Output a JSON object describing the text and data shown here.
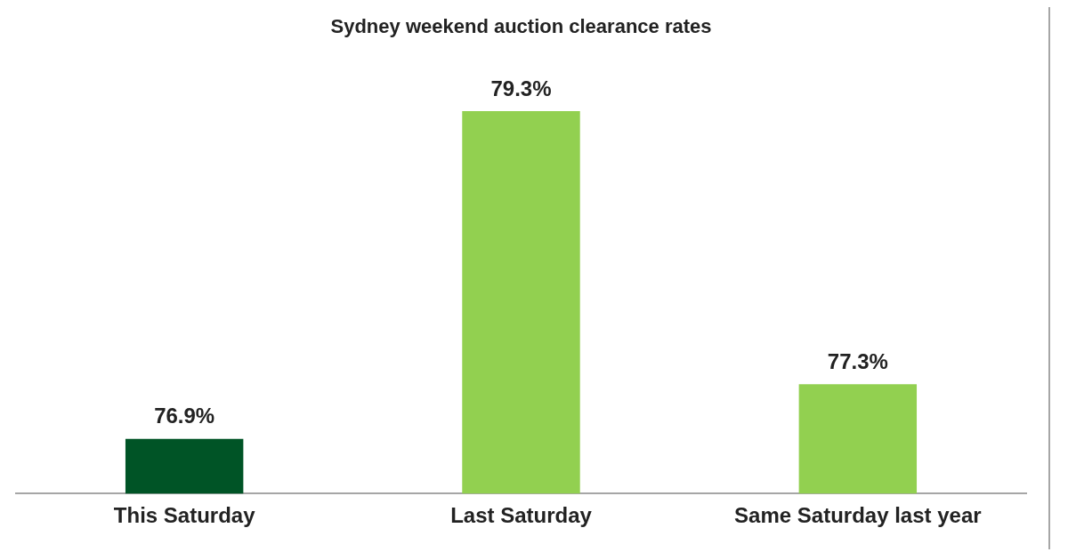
{
  "chart_data": {
    "type": "bar",
    "title": "Sydney weekend auction clearance rates",
    "categories": [
      "This Saturday",
      "Last Saturday",
      "Same Saturday last year"
    ],
    "values": [
      76.9,
      79.3,
      77.3
    ],
    "colors": [
      "#005426",
      "#92d050",
      "#92d050"
    ],
    "value_labels": [
      "76.9%",
      "79.3%",
      "77.3%"
    ],
    "grid": false,
    "legend": false,
    "tick_labels": "x"
  }
}
